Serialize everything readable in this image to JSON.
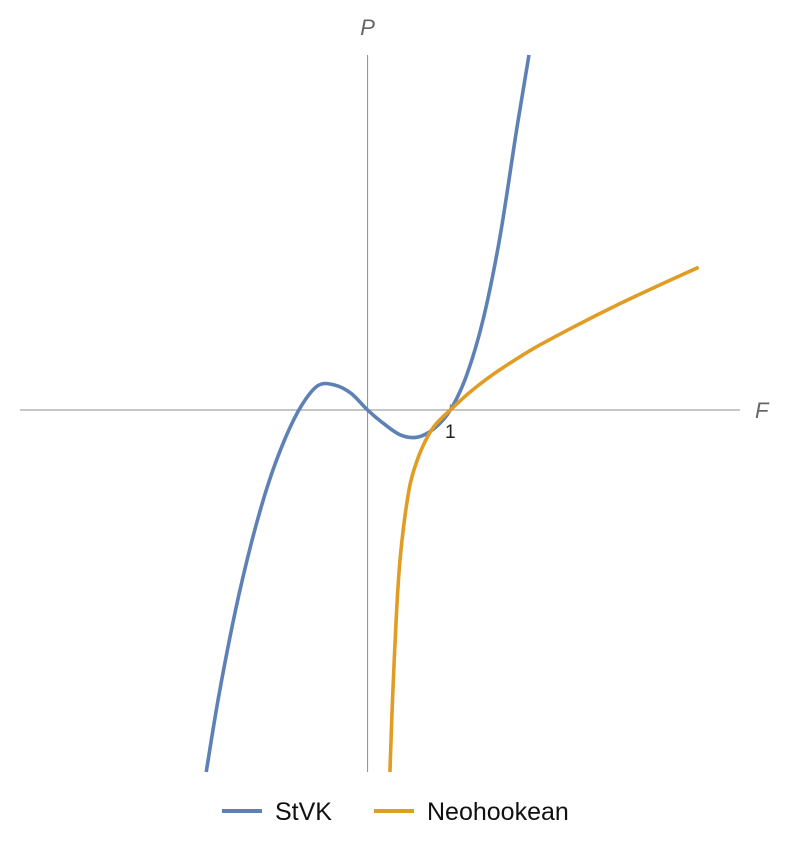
{
  "chart_data": {
    "type": "line",
    "title": "",
    "xlabel": "F",
    "ylabel": "P",
    "xlim": [
      -4.2,
      4.5
    ],
    "ylim": [
      -5.2,
      5.1
    ],
    "x_ticks": [
      {
        "value": 1,
        "label": "1"
      }
    ],
    "grid": false,
    "legend_placement": "bottom",
    "series": [
      {
        "name": "StVK",
        "color": "#5e81b5",
        "x": [
          -1.95,
          -1.8,
          -1.6,
          -1.4,
          -1.2,
          -1.0,
          -0.8,
          -0.6,
          -0.4,
          -0.2,
          0.0,
          0.2,
          0.4,
          0.6,
          0.8,
          1.0,
          1.2,
          1.4,
          1.6,
          1.8,
          1.95
        ],
        "y": [
          -5.2,
          -4.12,
          -2.9,
          -1.89,
          -1.06,
          -0.42,
          0.06,
          0.35,
          0.36,
          0.24,
          0.0,
          -0.2,
          -0.36,
          -0.39,
          -0.27,
          0.0,
          0.51,
          1.32,
          2.49,
          4.02,
          5.1
        ]
      },
      {
        "name": "Neohookean",
        "color": "#e19c24",
        "x": [
          0.27,
          0.3,
          0.35,
          0.4,
          0.5,
          0.6,
          0.7,
          0.8,
          0.9,
          1.0,
          1.2,
          1.4,
          1.6,
          2.0,
          2.5,
          3.0,
          3.5,
          4.0
        ],
        "y": [
          -5.2,
          -4.2,
          -2.9,
          -2.05,
          -1.15,
          -0.72,
          -0.44,
          -0.24,
          -0.11,
          0.0,
          0.22,
          0.41,
          0.58,
          0.88,
          1.2,
          1.5,
          1.78,
          2.05
        ]
      }
    ]
  }
}
